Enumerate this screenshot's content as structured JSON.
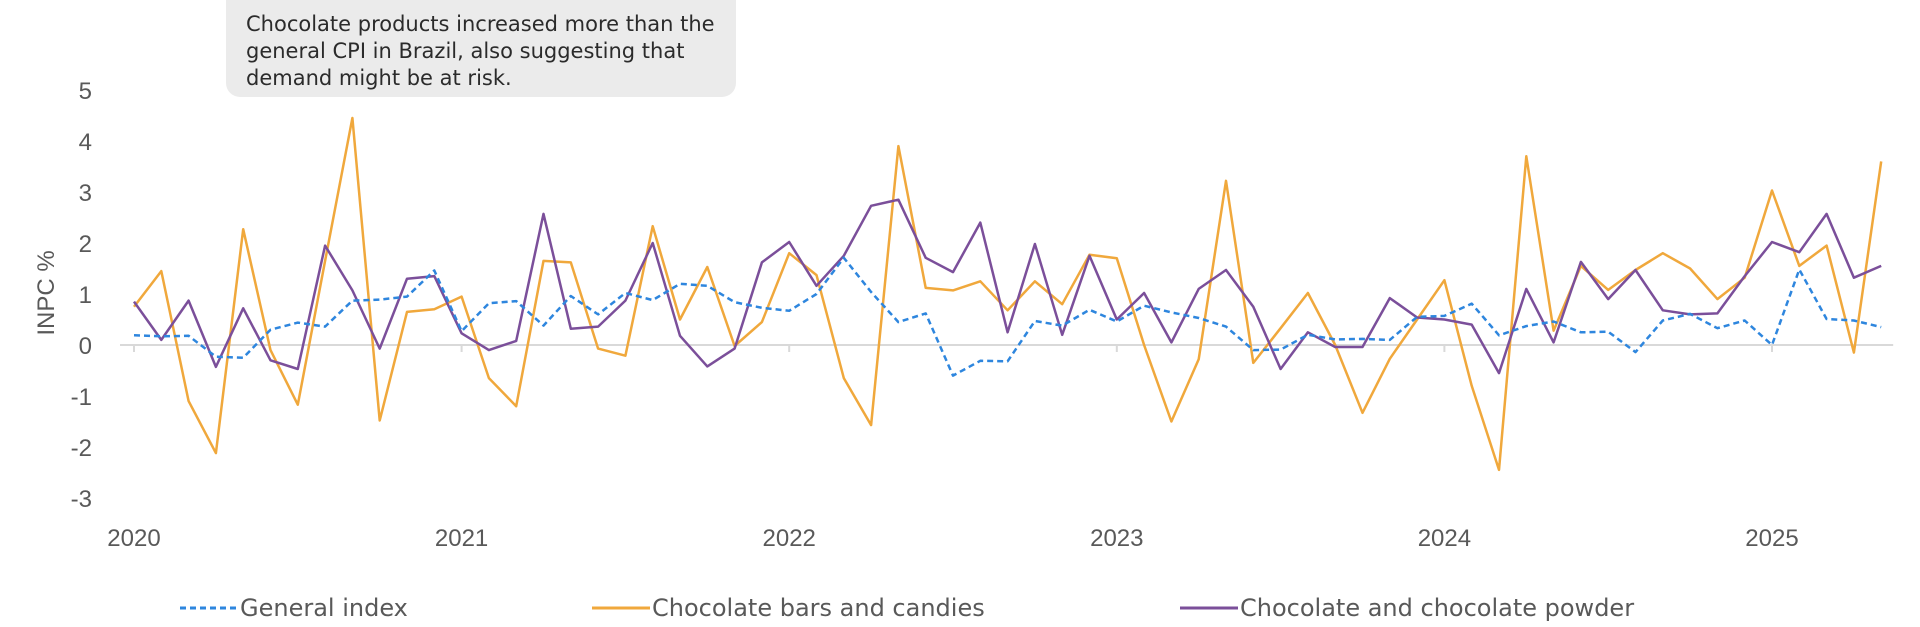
{
  "callout": {
    "text": "Chocolate products increased more than the general CPI in Brazil, also suggesting that demand might be at risk."
  },
  "colors": {
    "general": "#2e86de",
    "bars": "#f0a83c",
    "powder": "#7b4f9a",
    "axis_text": "#595959",
    "zero_line": "#d9d9d9"
  },
  "chart_data": {
    "type": "line",
    "title": "",
    "xlabel": "",
    "ylabel": "INPC %",
    "ylim": [
      -3,
      5
    ],
    "yticks": [
      5,
      4,
      3,
      2,
      1,
      0,
      -1,
      -2,
      -3
    ],
    "year_labels": [
      "2020",
      "2021",
      "2022",
      "2023",
      "2024",
      "2025"
    ],
    "x": [
      "2020-01",
      "2020-02",
      "2020-03",
      "2020-04",
      "2020-05",
      "2020-06",
      "2020-07",
      "2020-08",
      "2020-09",
      "2020-10",
      "2020-11",
      "2020-12",
      "2021-01",
      "2021-02",
      "2021-03",
      "2021-04",
      "2021-05",
      "2021-06",
      "2021-07",
      "2021-08",
      "2021-09",
      "2021-10",
      "2021-11",
      "2021-12",
      "2022-01",
      "2022-02",
      "2022-03",
      "2022-04",
      "2022-05",
      "2022-06",
      "2022-07",
      "2022-08",
      "2022-09",
      "2022-10",
      "2022-11",
      "2022-12",
      "2023-01",
      "2023-02",
      "2023-03",
      "2023-04",
      "2023-05",
      "2023-06",
      "2023-07",
      "2023-08",
      "2023-09",
      "2023-10",
      "2023-11",
      "2023-12",
      "2024-01",
      "2024-02",
      "2024-03",
      "2024-04",
      "2024-05",
      "2024-06",
      "2024-07",
      "2024-08",
      "2024-09",
      "2024-10",
      "2024-11",
      "2024-12",
      "2025-01",
      "2025-02",
      "2025-03",
      "2025-04",
      "2025-05"
    ],
    "grid": false,
    "legend_position": "bottom",
    "series": [
      {
        "name": "General index",
        "style": "dashed",
        "values": [
          0.19,
          0.17,
          0.18,
          -0.23,
          -0.25,
          0.3,
          0.44,
          0.36,
          0.87,
          0.89,
          0.95,
          1.46,
          0.27,
          0.82,
          0.86,
          0.38,
          0.96,
          0.6,
          1.02,
          0.88,
          1.2,
          1.16,
          0.84,
          0.73,
          0.67,
          1.0,
          1.71,
          1.04,
          0.45,
          0.62,
          -0.6,
          -0.31,
          -0.32,
          0.47,
          0.38,
          0.69,
          0.46,
          0.77,
          0.64,
          0.53,
          0.36,
          -0.1,
          -0.09,
          0.2,
          0.11,
          0.12,
          0.1,
          0.55,
          0.57,
          0.81,
          0.19,
          0.37,
          0.46,
          0.25,
          0.26,
          -0.14,
          0.48,
          0.61,
          0.33,
          0.48,
          0.0,
          1.48,
          0.51,
          0.48,
          0.35
        ]
      },
      {
        "name": "Chocolate bars and candies",
        "style": "solid",
        "values": [
          0.75,
          1.45,
          -1.1,
          -2.12,
          2.27,
          -0.1,
          -1.17,
          1.65,
          4.45,
          -1.48,
          0.65,
          0.7,
          0.95,
          -0.65,
          -1.2,
          1.65,
          1.62,
          -0.07,
          -0.21,
          2.33,
          0.5,
          1.53,
          -0.02,
          0.45,
          1.8,
          1.37,
          -0.65,
          -1.57,
          3.9,
          1.12,
          1.07,
          1.25,
          0.68,
          1.25,
          0.8,
          1.77,
          1.7,
          0.0,
          -1.5,
          -0.28,
          3.22,
          -0.35,
          0.33,
          1.02,
          0.0,
          -1.33,
          -0.27,
          0.5,
          1.27,
          -0.8,
          -2.45,
          3.7,
          0.28,
          1.55,
          1.08,
          1.47,
          1.8,
          1.5,
          0.9,
          1.32,
          3.03,
          1.55,
          1.95,
          -0.15,
          3.6
        ]
      },
      {
        "name": "Chocolate and chocolate powder",
        "style": "solid",
        "values": [
          0.85,
          0.1,
          0.87,
          -0.43,
          0.72,
          -0.3,
          -0.47,
          1.95,
          1.07,
          -0.07,
          1.3,
          1.35,
          0.23,
          -0.1,
          0.08,
          2.57,
          0.32,
          0.36,
          0.87,
          2.0,
          0.18,
          -0.42,
          -0.07,
          1.62,
          2.02,
          1.16,
          1.75,
          2.73,
          2.85,
          1.71,
          1.43,
          2.4,
          0.25,
          1.98,
          0.2,
          1.75,
          0.5,
          1.02,
          0.05,
          1.1,
          1.47,
          0.75,
          -0.47,
          0.25,
          -0.04,
          -0.04,
          0.92,
          0.54,
          0.5,
          0.4,
          -0.55,
          1.1,
          0.05,
          1.63,
          0.9,
          1.47,
          0.68,
          0.6,
          0.62,
          1.35,
          2.02,
          1.82,
          2.57,
          1.32,
          1.55
        ]
      }
    ]
  }
}
